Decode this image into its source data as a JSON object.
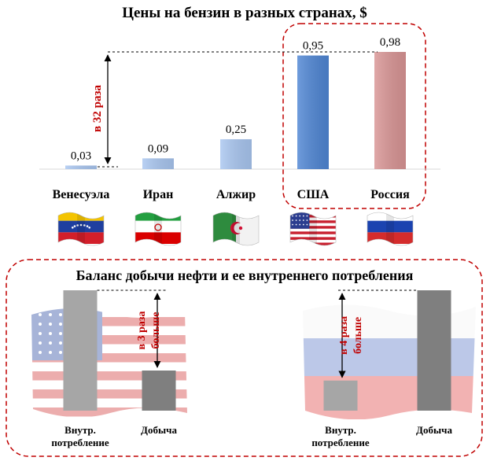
{
  "chart_data": [
    {
      "type": "bar",
      "title": "Цены на бензин в разных странах, $",
      "categories": [
        "Венесуэла",
        "Иран",
        "Алжир",
        "США",
        "Россия"
      ],
      "values": [
        0.03,
        0.09,
        0.25,
        0.95,
        0.98
      ],
      "value_labels": [
        "0,03",
        "0,09",
        "0,25",
        "0,95",
        "0,98"
      ],
      "ylim": [
        0,
        0.98
      ],
      "grid": false,
      "flags": [
        "venezuela-flag-icon",
        "iran-flag-icon",
        "algeria-flag-icon",
        "usa-flag-icon",
        "russia-flag-icon"
      ],
      "colors": [
        "#a9c6f0",
        "#a9c6f0",
        "#a9c6f0",
        "#4f86d4",
        "#d99595"
      ],
      "annotation": "в 32 раза",
      "highlight_color": "#c00000"
    },
    {
      "type": "bar",
      "title": "Баланс добычи нефти и ее внутреннего потребления",
      "panels": [
        {
          "flag": "usa-flag-icon",
          "categories": [
            "Внутр. потребление",
            "Добыча"
          ],
          "category_lines": [
            [
              "Внутр.",
              "потребление"
            ],
            [
              "Добыча"
            ]
          ],
          "values": [
            3,
            1
          ],
          "colors": [
            "#a6a6a6",
            "#7f7f7f"
          ],
          "annotation_lines": [
            "в 3 раза",
            "больше"
          ]
        },
        {
          "flag": "russia-flag-icon",
          "categories": [
            "Внутр. потребление",
            "Добыча"
          ],
          "category_lines": [
            [
              "Внутр.",
              "потребление"
            ],
            [
              "Добыча"
            ]
          ],
          "values": [
            1,
            4
          ],
          "colors": [
            "#a6a6a6",
            "#7f7f7f"
          ],
          "annotation_lines": [
            "в 4 раза",
            "больше"
          ]
        }
      ]
    }
  ]
}
